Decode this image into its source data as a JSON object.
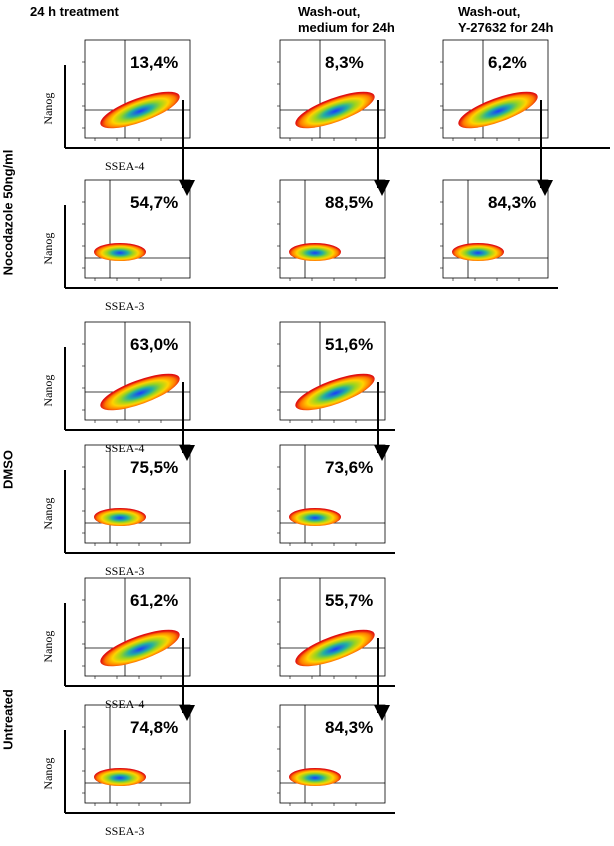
{
  "columns": [
    "24 h treatment",
    "Wash-out,\nmedium for 24h",
    "Wash-out,\nY-27632 for 24h"
  ],
  "groups": [
    {
      "label": "Nocodazole 50ng/ml",
      "rows": [
        {
          "x_label": "SSEA-4",
          "y_label": "Nanog",
          "panels": [
            "13,4%",
            "8,3%",
            "6,2%"
          ]
        },
        {
          "x_label": "SSEA-3",
          "y_label": "Nanog",
          "panels": [
            "54,7%",
            "88,5%",
            "84,3%"
          ]
        }
      ]
    },
    {
      "label": "DMSO",
      "rows": [
        {
          "x_label": "SSEA-4",
          "y_label": "Nanog",
          "panels": [
            "63,0%",
            "51,6%"
          ]
        },
        {
          "x_label": "SSEA-3",
          "y_label": "Nanog",
          "panels": [
            "75,5%",
            "73,6%"
          ]
        }
      ]
    },
    {
      "label": "Untreated",
      "rows": [
        {
          "x_label": "SSEA-4",
          "y_label": "Nanog",
          "panels": [
            "61,2%",
            "55,7%"
          ]
        },
        {
          "x_label": "SSEA-3",
          "y_label": "Nanog",
          "panels": [
            "74,8%",
            "84,3%"
          ]
        }
      ]
    }
  ]
}
